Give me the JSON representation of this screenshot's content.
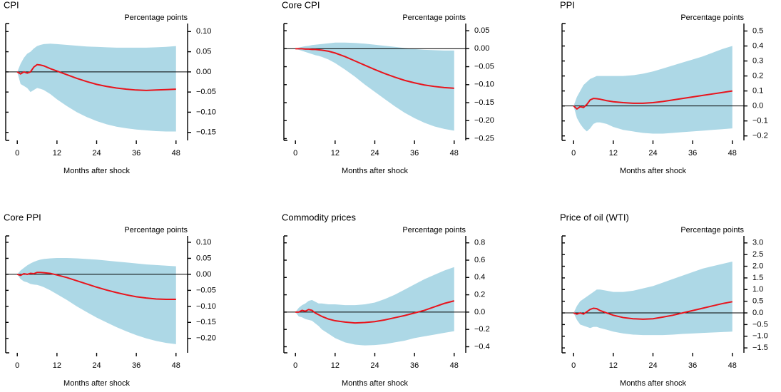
{
  "chart_data": [
    {
      "type": "line",
      "title": "CPI",
      "ylabel": "Percentage points",
      "xlabel": "Months after shock",
      "x": [
        0,
        1,
        2,
        3,
        4,
        5,
        6,
        7,
        8,
        10,
        12,
        15,
        18,
        21,
        24,
        27,
        30,
        33,
        36,
        39,
        42,
        45,
        48
      ],
      "xlim": [
        -3.5,
        51.5
      ],
      "xticks": [
        0,
        12,
        24,
        36,
        48
      ],
      "ylim": [
        -0.17,
        0.12
      ],
      "yticks": [
        {
          "value": 0.1,
          "label": "0.10"
        },
        {
          "value": 0.05,
          "label": "0.05"
        },
        {
          "value": 0,
          "label": "0.00"
        },
        {
          "value": -0.05,
          "label": "−0.05"
        },
        {
          "value": -0.1,
          "label": "−0.10"
        },
        {
          "value": -0.15,
          "label": "−0.15"
        }
      ],
      "series": [
        {
          "color": "#e8141c",
          "values": [
            0,
            -0.005,
            0.0,
            -0.003,
            0.0,
            0.012,
            0.018,
            0.017,
            0.015,
            0.008,
            0.002,
            -0.007,
            -0.016,
            -0.024,
            -0.031,
            -0.036,
            -0.04,
            -0.043,
            -0.045,
            -0.046,
            -0.045,
            -0.044,
            -0.043
          ]
        }
      ],
      "band": {
        "color": "#add8e6",
        "upper": [
          0,
          0.02,
          0.035,
          0.045,
          0.05,
          0.058,
          0.064,
          0.067,
          0.069,
          0.07,
          0.069,
          0.067,
          0.065,
          0.063,
          0.062,
          0.061,
          0.06,
          0.06,
          0.06,
          0.06,
          0.061,
          0.062,
          0.064
        ],
        "lower": [
          0,
          -0.03,
          -0.035,
          -0.04,
          -0.05,
          -0.045,
          -0.04,
          -0.042,
          -0.045,
          -0.055,
          -0.068,
          -0.085,
          -0.1,
          -0.112,
          -0.122,
          -0.13,
          -0.136,
          -0.14,
          -0.143,
          -0.145,
          -0.147,
          -0.148,
          -0.148
        ]
      }
    },
    {
      "type": "line",
      "title": "Core CPI",
      "ylabel": "Percentage points",
      "xlabel": "Months after shock",
      "x": [
        0,
        1,
        2,
        3,
        4,
        5,
        6,
        7,
        8,
        10,
        12,
        15,
        18,
        21,
        24,
        27,
        30,
        33,
        36,
        39,
        42,
        45,
        48
      ],
      "xlim": [
        -3.5,
        51.5
      ],
      "xticks": [
        0,
        12,
        24,
        36,
        48
      ],
      "ylim": [
        -0.255,
        0.07
      ],
      "yticks": [
        {
          "value": 0.05,
          "label": "0.05"
        },
        {
          "value": 0,
          "label": "0.00"
        },
        {
          "value": -0.05,
          "label": "−0.05"
        },
        {
          "value": -0.1,
          "label": "−0.10"
        },
        {
          "value": -0.15,
          "label": "−0.15"
        },
        {
          "value": -0.2,
          "label": "−0.20"
        },
        {
          "value": -0.25,
          "label": "−0.25"
        }
      ],
      "series": [
        {
          "color": "#e8141c",
          "values": [
            0,
            0,
            0,
            -0.001,
            -0.001,
            -0.002,
            -0.002,
            -0.003,
            -0.004,
            -0.007,
            -0.012,
            -0.022,
            -0.034,
            -0.046,
            -0.058,
            -0.069,
            -0.079,
            -0.088,
            -0.095,
            -0.101,
            -0.105,
            -0.108,
            -0.11
          ]
        }
      ],
      "band": {
        "color": "#add8e6",
        "upper": [
          0,
          0.003,
          0.005,
          0.007,
          0.008,
          0.01,
          0.011,
          0.012,
          0.013,
          0.015,
          0.017,
          0.017,
          0.016,
          0.014,
          0.011,
          0.008,
          0.005,
          0.002,
          -0.001,
          -0.003,
          -0.004,
          -0.005,
          -0.005
        ],
        "lower": [
          0,
          -0.003,
          -0.006,
          -0.009,
          -0.012,
          -0.015,
          -0.018,
          -0.02,
          -0.023,
          -0.03,
          -0.04,
          -0.058,
          -0.078,
          -0.1,
          -0.12,
          -0.14,
          -0.16,
          -0.178,
          -0.193,
          -0.206,
          -0.216,
          -0.223,
          -0.228
        ]
      }
    },
    {
      "type": "line",
      "title": "PPI",
      "ylabel": "Percentage points",
      "xlabel": "Months after shock",
      "x": [
        0,
        1,
        2,
        3,
        4,
        5,
        6,
        7,
        8,
        10,
        12,
        15,
        18,
        21,
        24,
        27,
        30,
        33,
        36,
        39,
        42,
        45,
        48
      ],
      "xlim": [
        -3.5,
        51.5
      ],
      "xticks": [
        0,
        12,
        24,
        36,
        48
      ],
      "ylim": [
        -0.23,
        0.55
      ],
      "yticks": [
        0.5,
        0.4,
        0.3,
        0.2,
        0.1,
        {
          "value": 0,
          "label": "0.0"
        },
        {
          "value": -0.1,
          "label": "−0.1"
        },
        {
          "value": -0.2,
          "label": "−0.2"
        }
      ],
      "series": [
        {
          "color": "#e8141c",
          "values": [
            0,
            -0.02,
            -0.005,
            -0.01,
            0.01,
            0.04,
            0.05,
            0.048,
            0.045,
            0.035,
            0.028,
            0.022,
            0.018,
            0.018,
            0.022,
            0.03,
            0.04,
            0.05,
            0.06,
            0.07,
            0.08,
            0.09,
            0.1
          ]
        }
      ],
      "band": {
        "color": "#add8e6",
        "upper": [
          0,
          0.06,
          0.1,
          0.14,
          0.16,
          0.18,
          0.19,
          0.2,
          0.2,
          0.2,
          0.2,
          0.2,
          0.205,
          0.215,
          0.23,
          0.25,
          0.27,
          0.29,
          0.31,
          0.33,
          0.355,
          0.38,
          0.4
        ],
        "lower": [
          0,
          -0.08,
          -0.12,
          -0.15,
          -0.17,
          -0.15,
          -0.12,
          -0.11,
          -0.11,
          -0.12,
          -0.14,
          -0.16,
          -0.17,
          -0.18,
          -0.185,
          -0.185,
          -0.18,
          -0.175,
          -0.17,
          -0.165,
          -0.16,
          -0.155,
          -0.15
        ]
      }
    },
    {
      "type": "line",
      "title": "Core PPI",
      "ylabel": "Percentage points",
      "xlabel": "Months after shock",
      "x": [
        0,
        1,
        2,
        3,
        4,
        5,
        6,
        7,
        8,
        10,
        12,
        15,
        18,
        21,
        24,
        27,
        30,
        33,
        36,
        39,
        42,
        45,
        48
      ],
      "xlim": [
        -3.5,
        51.5
      ],
      "xticks": [
        0,
        12,
        24,
        36,
        48
      ],
      "ylim": [
        -0.245,
        0.12
      ],
      "yticks": [
        {
          "value": 0.1,
          "label": "0.10"
        },
        {
          "value": 0.05,
          "label": "0.05"
        },
        {
          "value": 0,
          "label": "0.00"
        },
        {
          "value": -0.05,
          "label": "−0.05"
        },
        {
          "value": -0.1,
          "label": "−0.10"
        },
        {
          "value": -0.15,
          "label": "−0.15"
        },
        {
          "value": -0.2,
          "label": "−0.20"
        }
      ],
      "series": [
        {
          "color": "#e8141c",
          "values": [
            0,
            -0.003,
            0.002,
            0.0,
            0.003,
            0.002,
            0.006,
            0.006,
            0.005,
            0.003,
            -0.002,
            -0.01,
            -0.02,
            -0.03,
            -0.04,
            -0.049,
            -0.057,
            -0.064,
            -0.07,
            -0.074,
            -0.077,
            -0.078,
            -0.078
          ]
        }
      ],
      "band": {
        "color": "#add8e6",
        "upper": [
          0,
          0.012,
          0.02,
          0.028,
          0.034,
          0.039,
          0.043,
          0.046,
          0.048,
          0.05,
          0.051,
          0.051,
          0.05,
          0.048,
          0.046,
          0.043,
          0.04,
          0.037,
          0.034,
          0.031,
          0.029,
          0.027,
          0.025
        ],
        "lower": [
          0,
          -0.015,
          -0.022,
          -0.025,
          -0.03,
          -0.032,
          -0.033,
          -0.036,
          -0.04,
          -0.05,
          -0.062,
          -0.08,
          -0.1,
          -0.118,
          -0.135,
          -0.15,
          -0.165,
          -0.178,
          -0.19,
          -0.2,
          -0.208,
          -0.214,
          -0.218
        ]
      }
    },
    {
      "type": "line",
      "title": "Commodity prices",
      "ylabel": "Percentage points",
      "xlabel": "Months after shock",
      "x": [
        0,
        1,
        2,
        3,
        4,
        5,
        6,
        7,
        8,
        10,
        12,
        15,
        18,
        21,
        24,
        27,
        30,
        33,
        36,
        39,
        42,
        45,
        48
      ],
      "xlim": [
        -3.5,
        51.5
      ],
      "xticks": [
        0,
        12,
        24,
        36,
        48
      ],
      "ylim": [
        -0.47,
        0.88
      ],
      "yticks": [
        0.8,
        0.6,
        0.4,
        0.2,
        {
          "value": 0,
          "label": "0.0"
        },
        {
          "value": -0.2,
          "label": "−0.2"
        },
        {
          "value": -0.4,
          "label": "−0.4"
        }
      ],
      "series": [
        {
          "color": "#e8141c",
          "values": [
            0,
            0,
            0.02,
            0.01,
            0.03,
            0.02,
            -0.01,
            -0.03,
            -0.05,
            -0.08,
            -0.1,
            -0.115,
            -0.125,
            -0.12,
            -0.11,
            -0.09,
            -0.065,
            -0.04,
            -0.01,
            0.02,
            0.06,
            0.1,
            0.13
          ]
        }
      ],
      "band": {
        "color": "#add8e6",
        "upper": [
          0,
          0.05,
          0.08,
          0.1,
          0.13,
          0.14,
          0.12,
          0.1,
          0.1,
          0.09,
          0.09,
          0.08,
          0.08,
          0.09,
          0.11,
          0.15,
          0.2,
          0.26,
          0.32,
          0.38,
          0.43,
          0.48,
          0.52
        ],
        "lower": [
          0,
          -0.05,
          -0.06,
          -0.08,
          -0.09,
          -0.1,
          -0.13,
          -0.16,
          -0.2,
          -0.25,
          -0.3,
          -0.35,
          -0.375,
          -0.385,
          -0.38,
          -0.37,
          -0.35,
          -0.33,
          -0.3,
          -0.28,
          -0.26,
          -0.24,
          -0.22
        ]
      }
    },
    {
      "type": "line",
      "title": "Price of oil (WTI)",
      "ylabel": "Percentage points",
      "xlabel": "Months after shock",
      "x": [
        0,
        1,
        2,
        3,
        4,
        5,
        6,
        7,
        8,
        10,
        12,
        15,
        18,
        21,
        24,
        27,
        30,
        33,
        36,
        39,
        42,
        45,
        48
      ],
      "xlim": [
        -3.5,
        51.5
      ],
      "xticks": [
        0,
        12,
        24,
        36,
        48
      ],
      "ylim": [
        -1.71,
        3.3
      ],
      "yticks": [
        {
          "value": 3,
          "label": "3.0"
        },
        2.5,
        {
          "value": 2,
          "label": "2.0"
        },
        1.5,
        {
          "value": 1,
          "label": "1.0"
        },
        0.5,
        {
          "value": 0,
          "label": "0.0"
        },
        {
          "value": -0.5,
          "label": "−0.5"
        },
        {
          "value": -1,
          "label": "−1.0"
        },
        {
          "value": -1.5,
          "label": "−1.5"
        }
      ],
      "series": [
        {
          "color": "#e8141c",
          "values": [
            0,
            -0.05,
            0.0,
            -0.05,
            0.05,
            0.15,
            0.2,
            0.18,
            0.1,
            0.0,
            -0.1,
            -0.2,
            -0.25,
            -0.27,
            -0.25,
            -0.18,
            -0.1,
            0.0,
            0.1,
            0.2,
            0.3,
            0.4,
            0.48
          ]
        }
      ],
      "band": {
        "color": "#add8e6",
        "upper": [
          0,
          0.3,
          0.5,
          0.6,
          0.7,
          0.8,
          0.9,
          1.0,
          1.0,
          0.95,
          0.9,
          0.9,
          0.95,
          1.05,
          1.15,
          1.3,
          1.45,
          1.6,
          1.75,
          1.9,
          2.0,
          2.1,
          2.2
        ],
        "lower": [
          0,
          -0.3,
          -0.5,
          -0.55,
          -0.6,
          -0.65,
          -0.6,
          -0.6,
          -0.65,
          -0.72,
          -0.8,
          -0.88,
          -0.93,
          -0.95,
          -0.95,
          -0.95,
          -0.93,
          -0.9,
          -0.88,
          -0.86,
          -0.84,
          -0.82,
          -0.8
        ]
      }
    }
  ]
}
